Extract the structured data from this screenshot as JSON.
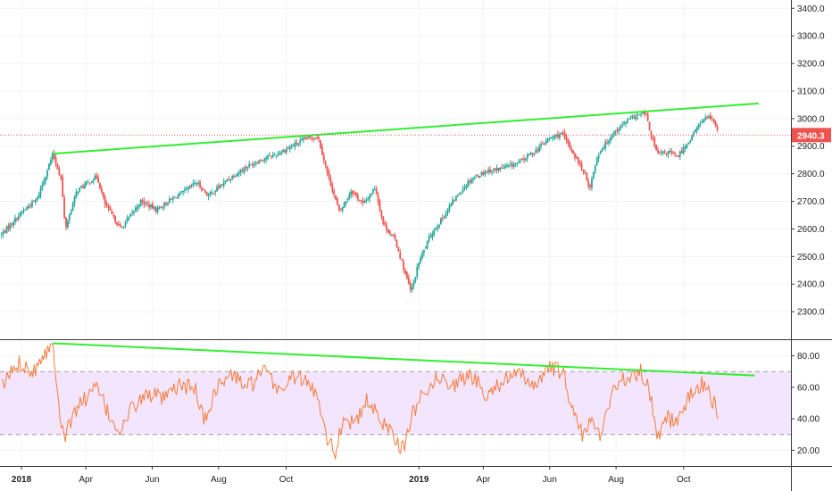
{
  "chart_data": [
    {
      "type": "candlestick",
      "panel": "price",
      "y_axis_side": "right",
      "ylim": [
        2200,
        3430
      ],
      "y_ticks": [
        "2300.0",
        "2400.0",
        "2500.0",
        "2600.0",
        "2700.0",
        "2800.0",
        "2900.0",
        "3000.0",
        "3100.0",
        "3200.0",
        "3300.0",
        "3400.0"
      ],
      "y_tick_values": [
        2300,
        2400,
        2500,
        2600,
        2700,
        2800,
        2900,
        3000,
        3100,
        3200,
        3300,
        3400
      ],
      "last_price": 2940.3,
      "last_price_label": "2940.3",
      "grid": true,
      "colors": {
        "up": "#26a69a",
        "down": "#ef5350",
        "trendline": "#33ee33",
        "last_price": "#ef5350",
        "last_price_line": "#ef5350"
      },
      "trendline": {
        "start": {
          "x": 2018.079,
          "y": 2873
        },
        "end": {
          "x": 2019.855,
          "y": 3055
        }
      },
      "waypoints": [
        {
          "x": 2017.95,
          "y": 2580
        },
        {
          "x": 2018.0,
          "y": 2660
        },
        {
          "x": 2018.04,
          "y": 2710
        },
        {
          "x": 2018.079,
          "y": 2872
        },
        {
          "x": 2018.1,
          "y": 2780
        },
        {
          "x": 2018.11,
          "y": 2600
        },
        {
          "x": 2018.14,
          "y": 2740
        },
        {
          "x": 2018.19,
          "y": 2790
        },
        {
          "x": 2018.21,
          "y": 2690
        },
        {
          "x": 2018.25,
          "y": 2600
        },
        {
          "x": 2018.27,
          "y": 2640
        },
        {
          "x": 2018.3,
          "y": 2700
        },
        {
          "x": 2018.34,
          "y": 2670
        },
        {
          "x": 2018.38,
          "y": 2710
        },
        {
          "x": 2018.41,
          "y": 2735
        },
        {
          "x": 2018.44,
          "y": 2770
        },
        {
          "x": 2018.47,
          "y": 2720
        },
        {
          "x": 2018.52,
          "y": 2780
        },
        {
          "x": 2018.56,
          "y": 2820
        },
        {
          "x": 2018.6,
          "y": 2850
        },
        {
          "x": 2018.64,
          "y": 2870
        },
        {
          "x": 2018.68,
          "y": 2900
        },
        {
          "x": 2018.72,
          "y": 2930
        },
        {
          "x": 2018.746,
          "y": 2935
        },
        {
          "x": 2018.77,
          "y": 2800
        },
        {
          "x": 2018.8,
          "y": 2660
        },
        {
          "x": 2018.83,
          "y": 2740
        },
        {
          "x": 2018.86,
          "y": 2690
        },
        {
          "x": 2018.89,
          "y": 2750
        },
        {
          "x": 2018.91,
          "y": 2620
        },
        {
          "x": 2018.94,
          "y": 2560
        },
        {
          "x": 2018.98,
          "y": 2370
        },
        {
          "x": 2019.0,
          "y": 2480
        },
        {
          "x": 2019.03,
          "y": 2580
        },
        {
          "x": 2019.06,
          "y": 2640
        },
        {
          "x": 2019.09,
          "y": 2710
        },
        {
          "x": 2019.13,
          "y": 2780
        },
        {
          "x": 2019.17,
          "y": 2810
        },
        {
          "x": 2019.21,
          "y": 2820
        },
        {
          "x": 2019.25,
          "y": 2840
        },
        {
          "x": 2019.29,
          "y": 2880
        },
        {
          "x": 2019.33,
          "y": 2930
        },
        {
          "x": 2019.36,
          "y": 2945
        },
        {
          "x": 2019.39,
          "y": 2870
        },
        {
          "x": 2019.41,
          "y": 2820
        },
        {
          "x": 2019.43,
          "y": 2750
        },
        {
          "x": 2019.45,
          "y": 2870
        },
        {
          "x": 2019.49,
          "y": 2950
        },
        {
          "x": 2019.53,
          "y": 3000
        },
        {
          "x": 2019.57,
          "y": 3020
        },
        {
          "x": 2019.58,
          "y": 2960
        },
        {
          "x": 2019.6,
          "y": 2870
        },
        {
          "x": 2019.63,
          "y": 2880
        },
        {
          "x": 2019.65,
          "y": 2860
        },
        {
          "x": 2019.68,
          "y": 2920
        },
        {
          "x": 2019.71,
          "y": 2990
        },
        {
          "x": 2019.73,
          "y": 3010
        },
        {
          "x": 2019.75,
          "y": 2960
        },
        {
          "x": 2019.755,
          "y": 2940
        }
      ]
    },
    {
      "type": "line",
      "panel": "rsi",
      "y_axis_side": "right",
      "ylim": [
        10,
        90
      ],
      "y_ticks": [
        "20.00",
        "40.00",
        "60.00",
        "80.00"
      ],
      "y_tick_values": [
        20,
        40,
        60,
        80
      ],
      "band": [
        30,
        70
      ],
      "grid": true,
      "colors": {
        "line": "#f57c3a",
        "band_fill": "#f3e5fd",
        "band_border": "#a0a0a0",
        "trendline": "#33ee33"
      },
      "trendline": {
        "start": {
          "x": 2018.079,
          "y": 88
        },
        "end": {
          "x": 2019.845,
          "y": 67.5
        }
      },
      "waypoints": [
        {
          "x": 2017.95,
          "y": 60
        },
        {
          "x": 2017.98,
          "y": 72
        },
        {
          "x": 2018.0,
          "y": 76
        },
        {
          "x": 2018.03,
          "y": 70
        },
        {
          "x": 2018.05,
          "y": 80
        },
        {
          "x": 2018.079,
          "y": 87
        },
        {
          "x": 2018.1,
          "y": 38
        },
        {
          "x": 2018.11,
          "y": 29
        },
        {
          "x": 2018.14,
          "y": 48
        },
        {
          "x": 2018.19,
          "y": 60
        },
        {
          "x": 2018.22,
          "y": 42
        },
        {
          "x": 2018.25,
          "y": 32
        },
        {
          "x": 2018.28,
          "y": 48
        },
        {
          "x": 2018.32,
          "y": 56
        },
        {
          "x": 2018.36,
          "y": 52
        },
        {
          "x": 2018.4,
          "y": 62
        },
        {
          "x": 2018.44,
          "y": 58
        },
        {
          "x": 2018.46,
          "y": 38
        },
        {
          "x": 2018.49,
          "y": 60
        },
        {
          "x": 2018.53,
          "y": 68
        },
        {
          "x": 2018.57,
          "y": 60
        },
        {
          "x": 2018.61,
          "y": 70
        },
        {
          "x": 2018.65,
          "y": 58
        },
        {
          "x": 2018.69,
          "y": 68
        },
        {
          "x": 2018.72,
          "y": 62
        },
        {
          "x": 2018.746,
          "y": 55
        },
        {
          "x": 2018.77,
          "y": 28
        },
        {
          "x": 2018.79,
          "y": 18
        },
        {
          "x": 2018.81,
          "y": 42
        },
        {
          "x": 2018.84,
          "y": 36
        },
        {
          "x": 2018.87,
          "y": 52
        },
        {
          "x": 2018.9,
          "y": 40
        },
        {
          "x": 2018.93,
          "y": 33
        },
        {
          "x": 2018.96,
          "y": 20
        },
        {
          "x": 2018.98,
          "y": 40
        },
        {
          "x": 2019.01,
          "y": 58
        },
        {
          "x": 2019.05,
          "y": 66
        },
        {
          "x": 2019.09,
          "y": 62
        },
        {
          "x": 2019.13,
          "y": 68
        },
        {
          "x": 2019.17,
          "y": 56
        },
        {
          "x": 2019.21,
          "y": 64
        },
        {
          "x": 2019.25,
          "y": 68
        },
        {
          "x": 2019.29,
          "y": 62
        },
        {
          "x": 2019.33,
          "y": 72
        },
        {
          "x": 2019.36,
          "y": 70
        },
        {
          "x": 2019.39,
          "y": 44
        },
        {
          "x": 2019.41,
          "y": 30
        },
        {
          "x": 2019.43,
          "y": 38
        },
        {
          "x": 2019.46,
          "y": 30
        },
        {
          "x": 2019.49,
          "y": 62
        },
        {
          "x": 2019.53,
          "y": 66
        },
        {
          "x": 2019.56,
          "y": 70
        },
        {
          "x": 2019.58,
          "y": 58
        },
        {
          "x": 2019.6,
          "y": 28
        },
        {
          "x": 2019.62,
          "y": 42
        },
        {
          "x": 2019.65,
          "y": 36
        },
        {
          "x": 2019.68,
          "y": 55
        },
        {
          "x": 2019.71,
          "y": 62
        },
        {
          "x": 2019.73,
          "y": 56
        },
        {
          "x": 2019.755,
          "y": 44
        }
      ]
    }
  ],
  "x_axis": {
    "xlim": [
      2017.946,
      2019.936
    ],
    "ticks": [
      {
        "x": 2018.0,
        "label": "2018",
        "bold": true
      },
      {
        "x": 2018.162,
        "label": "Apr",
        "bold": false
      },
      {
        "x": 2018.329,
        "label": "Jun",
        "bold": false
      },
      {
        "x": 2018.496,
        "label": "Aug",
        "bold": false
      },
      {
        "x": 2018.666,
        "label": "Oct",
        "bold": false
      },
      {
        "x": 2019.0,
        "label": "2019",
        "bold": true
      },
      {
        "x": 2019.162,
        "label": "Apr",
        "bold": false
      },
      {
        "x": 2019.329,
        "label": "Jun",
        "bold": false
      },
      {
        "x": 2019.496,
        "label": "Aug",
        "bold": false
      },
      {
        "x": 2019.666,
        "label": "Oct",
        "bold": false
      }
    ]
  }
}
